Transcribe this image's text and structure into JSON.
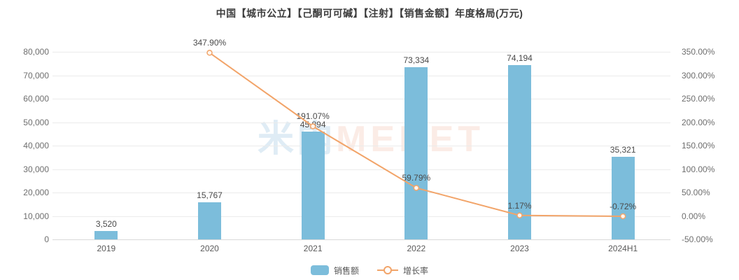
{
  "title": "中国【城市公立】【己酮可可碱】【注射】【销售金额】年度格局(万元)",
  "watermark": {
    "cn": "米内",
    "en": "MENET"
  },
  "legend": {
    "sales_label": "销售额",
    "growth_label": "增长率"
  },
  "colors": {
    "bar": "#7cbddb",
    "line": "#f2a469",
    "marker_fill": "#fef6ee",
    "grid": "#ebebeb",
    "axis_line": "#d9d9d9",
    "watermark_blue": "#dfecf5",
    "watermark_pink": "#fbece6"
  },
  "chart_data": {
    "type": "bar",
    "subtype": "bar+line combo",
    "title": "中国【城市公立】【己酮可可碱】【注射】【销售金额】年度格局(万元)",
    "categories": [
      "2019",
      "2020",
      "2021",
      "2022",
      "2023",
      "2024H1"
    ],
    "series": [
      {
        "name": "销售额",
        "type": "bar",
        "axis": "left",
        "values": [
          3520,
          15767,
          45894,
          73334,
          74194,
          35321
        ],
        "labels": [
          "3,520",
          "15,767",
          "45,894",
          "73,334",
          "74,194",
          "35,321"
        ]
      },
      {
        "name": "增长率",
        "type": "line",
        "axis": "right",
        "values": [
          null,
          347.9,
          191.07,
          59.79,
          1.17,
          -0.72
        ],
        "labels": [
          null,
          "347.90%",
          "191.07%",
          "59.79%",
          "1.17%",
          "-0.72%"
        ]
      }
    ],
    "left_axis": {
      "min": 0,
      "max": 80000,
      "step": 10000,
      "ticks": [
        "0",
        "10,000",
        "20,000",
        "30,000",
        "40,000",
        "50,000",
        "60,000",
        "70,000",
        "80,000"
      ]
    },
    "right_axis": {
      "min": -50,
      "max": 350,
      "step": 50,
      "ticks": [
        "-50.00%",
        "0.00%",
        "50.00%",
        "100.00%",
        "150.00%",
        "200.00%",
        "250.00%",
        "300.00%",
        "350.00%"
      ]
    },
    "grid": true,
    "legend_position": "bottom-center"
  }
}
